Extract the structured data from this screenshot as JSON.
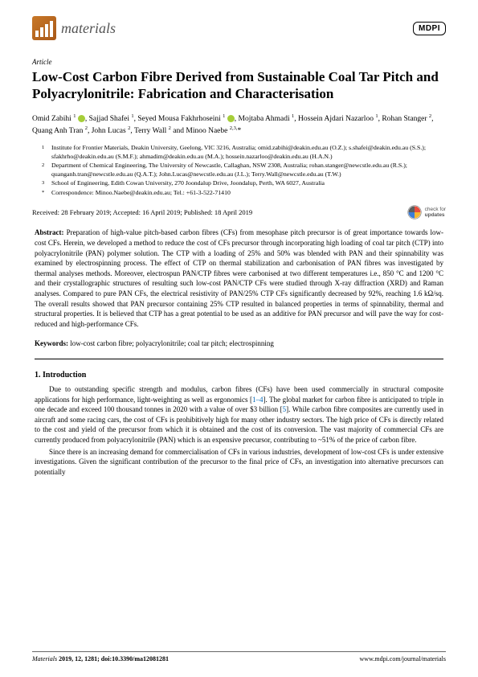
{
  "journal": {
    "name": "materials",
    "publisher": "MDPI"
  },
  "article_type": "Article",
  "title": "Low-Cost Carbon Fibre Derived from Sustainable Coal Tar Pitch and Polyacrylonitrile: Fabrication and Characterisation",
  "authors_html": "Omid Zabihi <sup>1</sup> <span class='orcid'></span>, Sajjad Shafei <sup>1</sup>, Seyed Mousa Fakhrhoseini <sup>1</sup> <span class='orcid'></span>, Mojtaba Ahmadi <sup>1</sup>, Hossein Ajdari Nazarloo <sup>1</sup>, Rohan Stanger <sup>2</sup>, Quang Anh Tran <sup>2</sup>, John Lucas <sup>2</sup>, Terry Wall <sup>2</sup> and Minoo Naebe <sup>2,3,</sup>*",
  "affiliations": [
    {
      "num": "1",
      "text": "Institute for Frontier Materials, Deakin University, Geelong, VIC 3216, Australia; omid.zabihi@deakin.edu.au (O.Z.); s.shafei@deakin.edu.au (S.S.); sfakhrho@deakin.edu.au (S.M.F.); ahmadim@deakin.edu.au (M.A.); hossein.nazarloo@deakin.edu.au (H.A.N.)"
    },
    {
      "num": "2",
      "text": "Department of Chemical Engineering, The University of Newcastle, Callaghan, NSW 2308, Australia; rohan.stanger@newcstle.edu.au (R.S.); quanganh.tran@newcstle.edu.au (Q.A.T.); John.Lucas@newcstle.edu.au (J.L.); Terry.Wall@newcstle.edu.au (T.W.)"
    },
    {
      "num": "3",
      "text": "School of Engineering, Edith Cowan University, 270 Joondalup Drive, Joondalup, Perth, WA 6027, Australia"
    },
    {
      "num": "*",
      "text": "Correspondence: Minoo.Naebe@deakin.edu.au; Tel.: +61-3-522-71410"
    }
  ],
  "dates": "Received: 28 February 2019; Accepted: 16 April 2019; Published: 18 April 2019",
  "check_updates": {
    "line1": "check for",
    "line2": "updates"
  },
  "abstract_label": "Abstract:",
  "abstract": "Preparation of high-value pitch-based carbon fibres (CFs) from mesophase pitch precursor is of great importance towards low-cost CFs. Herein, we developed a method to reduce the cost of CFs precursor through incorporating high loading of coal tar pitch (CTP) into polyacrylonitrile (PAN) polymer solution. The CTP with a loading of 25% and 50% was blended with PAN and their spinnability was examined by electrospinning process. The effect of CTP on thermal stabilization and carbonisation of PAN fibres was investigated by thermal analyses methods. Moreover, electrospun PAN/CTP fibres were carbonised at two different temperatures i.e., 850 °C and 1200 °C and their crystallographic structures of resulting such low-cost PAN/CTP CFs were studied through X-ray diffraction (XRD) and Raman analyses. Compared to pure PAN CFs, the electrical resistivity of PAN/25% CTP CFs significantly decreased by 92%, reaching 1.6 kΩ/sq. The overall results showed that PAN precursor containing 25% CTP resulted in balanced properties in terms of spinnability, thermal and structural properties. It is believed that CTP has a great potential to be used as an additive for PAN precursor and will pave the way for cost-reduced and high-performance CFs.",
  "keywords_label": "Keywords:",
  "keywords": "low-cost carbon fibre; polyacrylonitrile; coal tar pitch; electrospinning",
  "section1_heading": "1. Introduction",
  "intro_p1": "Due to outstanding specific strength and modulus, carbon fibres (CFs) have been used commercially in structural composite applications for high performance, light-weighting as well as ergonomics [",
  "intro_p1_ref": "1–4",
  "intro_p1_cont": "]. The global market for carbon fibre is anticipated to triple in one decade and exceed 100 thousand tonnes in 2020 with a value of over $3 billion [",
  "intro_p1_ref2": "5",
  "intro_p1_end": "]. While carbon fibre composites are currently used in aircraft and some racing cars, the cost of CFs is prohibitively high for many other industry sectors. The high price of CFs is directly related to the cost and yield of the precursor from which it is obtained and the cost of its conversion. The vast majority of commercial CFs are currently produced from polyacrylonitrile (PAN) which is an expensive precursor, contributing to ~51% of the price of carbon fibre.",
  "intro_p2": "Since there is an increasing demand for commercialisation of CFs in various industries, development of low-cost CFs is under extensive investigations. Given the significant contribution of the precursor to the final price of CFs, an investigation into alternative precursors can potentially",
  "footer": {
    "left_italic": "Materials",
    "left_rest": " 2019, 12, 1281; doi:10.3390/ma12081281",
    "right": "www.mdpi.com/journal/materials"
  },
  "colors": {
    "orcid": "#a6ce39",
    "ref_link": "#0067b8",
    "logo_grad_start": "#c87828",
    "logo_grad_end": "#a85818"
  }
}
